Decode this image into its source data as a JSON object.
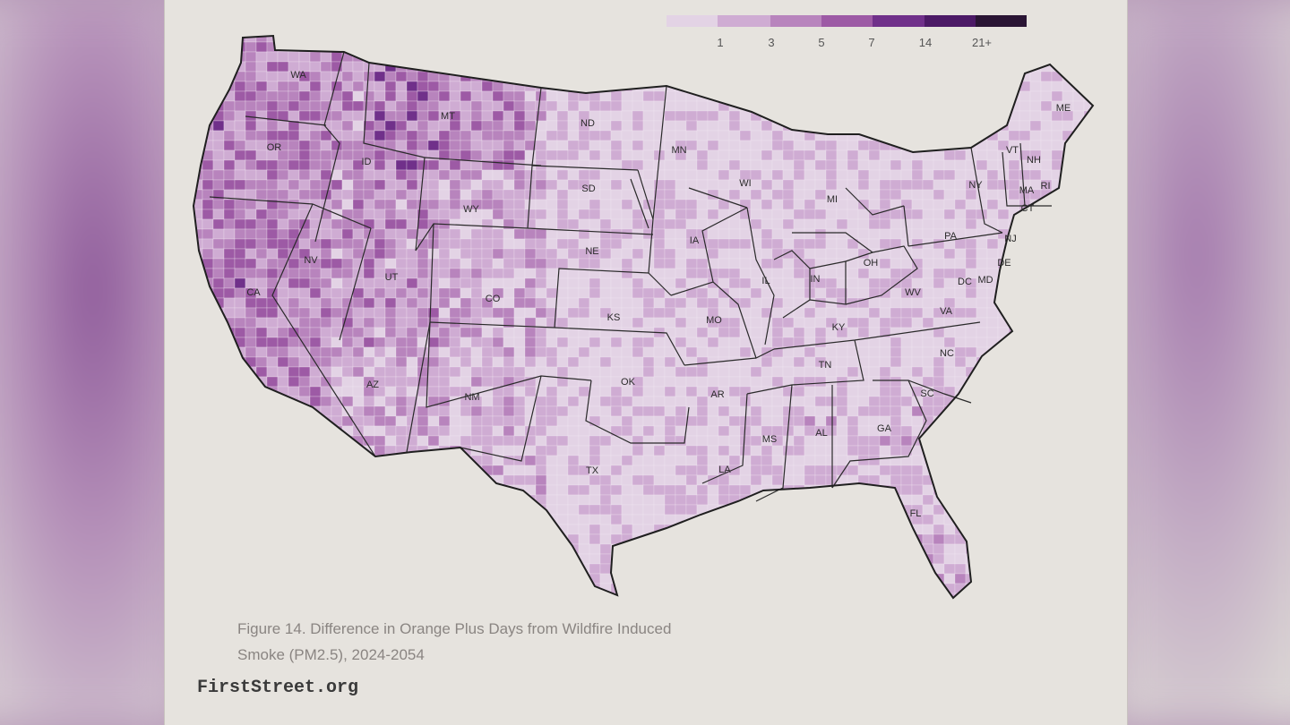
{
  "legend": {
    "colors": [
      "#e3d3e5",
      "#cfacd3",
      "#b884bd",
      "#9d5aa5",
      "#70308a",
      "#4c1a66",
      "#2a1534"
    ],
    "ticks": [
      "1",
      "3",
      "5",
      "7",
      "14",
      "21+"
    ]
  },
  "states": [
    {
      "abbr": "WA"
    },
    {
      "abbr": "OR"
    },
    {
      "abbr": "ID"
    },
    {
      "abbr": "MT"
    },
    {
      "abbr": "ND"
    },
    {
      "abbr": "MN"
    },
    {
      "abbr": "WI"
    },
    {
      "abbr": "MI"
    },
    {
      "abbr": "NY"
    },
    {
      "abbr": "VT"
    },
    {
      "abbr": "NH"
    },
    {
      "abbr": "ME"
    },
    {
      "abbr": "MA"
    },
    {
      "abbr": "RI"
    },
    {
      "abbr": "CT"
    },
    {
      "abbr": "NJ"
    },
    {
      "abbr": "PA"
    },
    {
      "abbr": "DE"
    },
    {
      "abbr": "MD"
    },
    {
      "abbr": "DC"
    },
    {
      "abbr": "SD"
    },
    {
      "abbr": "WY"
    },
    {
      "abbr": "NE"
    },
    {
      "abbr": "IA"
    },
    {
      "abbr": "IL"
    },
    {
      "abbr": "IN"
    },
    {
      "abbr": "OH"
    },
    {
      "abbr": "WV"
    },
    {
      "abbr": "VA"
    },
    {
      "abbr": "KY"
    },
    {
      "abbr": "NV"
    },
    {
      "abbr": "UT"
    },
    {
      "abbr": "CO"
    },
    {
      "abbr": "KS"
    },
    {
      "abbr": "MO"
    },
    {
      "abbr": "CA"
    },
    {
      "abbr": "AZ"
    },
    {
      "abbr": "NM"
    },
    {
      "abbr": "OK"
    },
    {
      "abbr": "AR"
    },
    {
      "abbr": "TN"
    },
    {
      "abbr": "NC"
    },
    {
      "abbr": "SC"
    },
    {
      "abbr": "TX"
    },
    {
      "abbr": "LA"
    },
    {
      "abbr": "MS"
    },
    {
      "abbr": "AL"
    },
    {
      "abbr": "GA"
    },
    {
      "abbr": "FL"
    }
  ],
  "caption": {
    "line1": "Figure 14. Difference in Orange Plus Days from Wildfire Induced",
    "line2": "Smoke (PM2.5), 2024-2054"
  },
  "source": "FirstStreet.org"
}
